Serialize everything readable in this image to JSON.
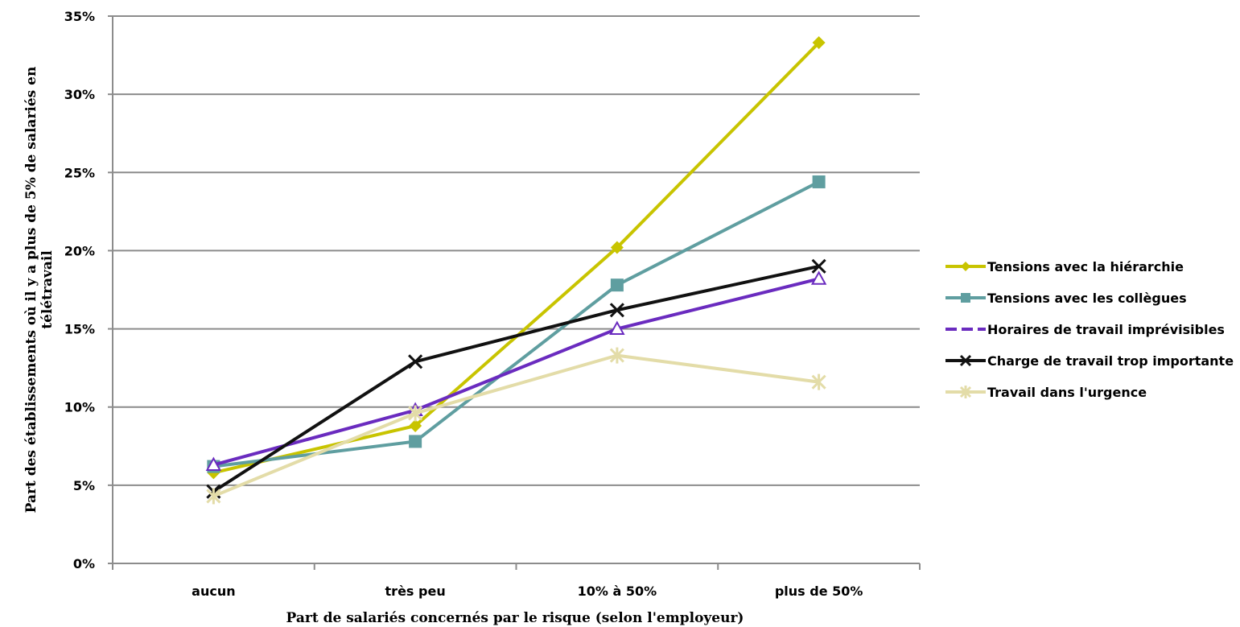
{
  "chart_data": {
    "type": "line",
    "title": "",
    "xlabel": "Part de salariés concernés par le risque  (selon l'employeur)",
    "ylabel_lines": [
      "Part des établissements où il y a plus de 5% de salariés en",
      "télétravail"
    ],
    "categories": [
      "aucun",
      "très peu",
      "10% à 50%",
      "plus de 50%"
    ],
    "ylim": [
      0,
      35
    ],
    "yticks": [
      "0%",
      "5%",
      "10%",
      "15%",
      "20%",
      "25%",
      "30%",
      "35%"
    ],
    "ytick_values": [
      0,
      5,
      10,
      15,
      20,
      25,
      30,
      35
    ],
    "grid": "horizontal",
    "legend_position": "right",
    "series": [
      {
        "name": "Tensions avec la hiérarchie",
        "values": [
          5.8,
          8.8,
          20.2,
          33.3
        ],
        "color": "#c8c400",
        "marker": "diamond"
      },
      {
        "name": "Tensions avec les collègues",
        "values": [
          6.2,
          7.8,
          17.8,
          24.4
        ],
        "color": "#5f9ea0",
        "marker": "square"
      },
      {
        "name": "Horaires de travail imprévisibles",
        "values": [
          6.3,
          9.8,
          15.0,
          18.2
        ],
        "color": "#6a2bbf",
        "marker": "triangle"
      },
      {
        "name": "Charge de travail trop importante",
        "values": [
          4.6,
          12.9,
          16.2,
          19.0
        ],
        "color": "#111111",
        "marker": "x"
      },
      {
        "name": "Travail dans l'urgence",
        "values": [
          4.3,
          9.6,
          13.3,
          11.6
        ],
        "color": "#e3dca8",
        "marker": "asterisk"
      }
    ]
  }
}
